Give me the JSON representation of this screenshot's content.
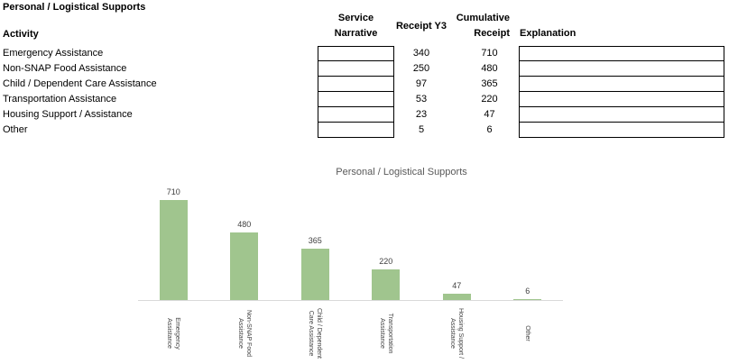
{
  "section": {
    "title": "Personal / Logistical Supports"
  },
  "table": {
    "headers": {
      "activity": "Activity",
      "service_narrative_line1": "Service",
      "service_narrative_line2": "Narrative",
      "receipt_y3": "Receipt Y3",
      "cumulative_line1": "Cumulative",
      "cumulative_line2": "Receipt",
      "explanation": "Explanation"
    },
    "rows": [
      {
        "activity": "Emergency Assistance",
        "service_narrative": "",
        "receipt_y3": "340",
        "cumulative_receipt": "710",
        "explanation": ""
      },
      {
        "activity": "Non-SNAP Food Assistance",
        "service_narrative": "",
        "receipt_y3": "250",
        "cumulative_receipt": "480",
        "explanation": ""
      },
      {
        "activity": "Child / Dependent Care Assistance",
        "service_narrative": "",
        "receipt_y3": "97",
        "cumulative_receipt": "365",
        "explanation": ""
      },
      {
        "activity": "Transportation Assistance",
        "service_narrative": "",
        "receipt_y3": "53",
        "cumulative_receipt": "220",
        "explanation": ""
      },
      {
        "activity": "Housing Support / Assistance",
        "service_narrative": "",
        "receipt_y3": "23",
        "cumulative_receipt": "47",
        "explanation": ""
      },
      {
        "activity": "Other",
        "service_narrative": "",
        "receipt_y3": "5",
        "cumulative_receipt": "6",
        "explanation": ""
      }
    ]
  },
  "chart_data": {
    "type": "bar",
    "title": "Personal / Logistical Supports",
    "categories": [
      "Emergency Assistance",
      "Non-SNAP Food Assistance",
      "Child / Dependent Care Assistance",
      "Transportation Assistance",
      "Housing Support / Assistance",
      "Other"
    ],
    "values": [
      710,
      480,
      365,
      220,
      47,
      6
    ],
    "data_labels": [
      "710",
      "480",
      "365",
      "220",
      "47",
      "6"
    ],
    "tick_label_lines": [
      [
        "Emergency",
        "Assistance"
      ],
      [
        "Non-SNAP Food",
        "Assistance"
      ],
      [
        "Child / Dependent",
        "Care Assistance"
      ],
      [
        "Transportation",
        "Assistance"
      ],
      [
        "Housing Support /",
        "Assistance"
      ],
      [
        "Other"
      ]
    ],
    "xlabel": "",
    "ylabel": "",
    "ylim": [
      0,
      710
    ],
    "grid": "off",
    "legend": "none",
    "bar_color": "#a0c58e",
    "axis_color": "#d9d9d9",
    "title_color": "#595959",
    "label_color": "#404040"
  }
}
